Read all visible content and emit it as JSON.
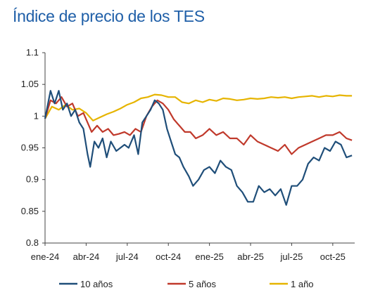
{
  "chart_data": {
    "type": "line",
    "title": "Índice de precio de los TES",
    "xlabel": "",
    "ylabel": "",
    "x_ticks": [
      "ene-24",
      "abr-24",
      "jul-24",
      "oct-24",
      "ene-25",
      "abr-25",
      "jul-25",
      "oct-25"
    ],
    "y_ticks": [
      "0.8",
      "0.85",
      "0.9",
      "0.95",
      "1",
      "1.05",
      "1.1"
    ],
    "ylim": [
      0.8,
      1.1
    ],
    "x_unit": "months since ene-24",
    "xlim": [
      0,
      22.6
    ],
    "grid": false,
    "legend_position": "bottom",
    "series": [
      {
        "name": "10 años",
        "color": "#1f4e79",
        "x": [
          0,
          0.4,
          0.7,
          1.0,
          1.3,
          1.6,
          1.9,
          2.2,
          2.5,
          2.8,
          3.1,
          3.3,
          3.6,
          3.9,
          4.2,
          4.5,
          4.8,
          5.2,
          5.5,
          5.8,
          6.1,
          6.5,
          6.8,
          7.1,
          7.4,
          7.7,
          8.0,
          8.3,
          8.6,
          8.9,
          9.2,
          9.5,
          9.8,
          10.1,
          10.5,
          10.8,
          11.2,
          11.6,
          12.0,
          12.4,
          12.8,
          13.2,
          13.6,
          14.0,
          14.4,
          14.8,
          15.2,
          15.6,
          16.0,
          16.4,
          16.8,
          17.2,
          17.6,
          18.0,
          18.4,
          18.8,
          19.2,
          19.6,
          20.0,
          20.4,
          20.8,
          21.2,
          21.6,
          22.0,
          22.4
        ],
        "values": [
          0.996,
          1.04,
          1.02,
          1.04,
          1.01,
          1.02,
          1.0,
          1.01,
          0.99,
          0.98,
          0.94,
          0.92,
          0.96,
          0.95,
          0.965,
          0.935,
          0.96,
          0.945,
          0.95,
          0.955,
          0.95,
          0.97,
          0.94,
          0.99,
          1.0,
          1.01,
          1.025,
          1.02,
          1.01,
          0.98,
          0.96,
          0.94,
          0.935,
          0.92,
          0.905,
          0.89,
          0.9,
          0.915,
          0.92,
          0.91,
          0.93,
          0.92,
          0.915,
          0.89,
          0.88,
          0.865,
          0.865,
          0.89,
          0.88,
          0.885,
          0.875,
          0.885,
          0.86,
          0.89,
          0.89,
          0.9,
          0.925,
          0.935,
          0.93,
          0.95,
          0.945,
          0.96,
          0.955,
          0.935,
          0.938
        ]
      },
      {
        "name": "5 años",
        "color": "#c0392b",
        "x": [
          0,
          0.4,
          0.8,
          1.2,
          1.6,
          2.0,
          2.4,
          2.8,
          3.1,
          3.4,
          3.8,
          4.2,
          4.6,
          5.0,
          5.4,
          5.8,
          6.2,
          6.6,
          7.0,
          7.4,
          7.8,
          8.2,
          8.6,
          9.0,
          9.4,
          9.8,
          10.2,
          10.6,
          11.0,
          11.5,
          12.0,
          12.5,
          13.0,
          13.5,
          14.0,
          14.5,
          15.0,
          15.5,
          16.0,
          16.5,
          17.0,
          17.5,
          18.0,
          18.5,
          19.0,
          19.5,
          20.0,
          20.5,
          21.0,
          21.5,
          22.0,
          22.4
        ],
        "values": [
          0.996,
          1.025,
          1.02,
          1.03,
          1.015,
          1.02,
          1.0,
          1.005,
          0.99,
          0.975,
          0.985,
          0.975,
          0.98,
          0.97,
          0.972,
          0.975,
          0.97,
          0.98,
          0.975,
          1.0,
          1.015,
          1.025,
          1.02,
          1.01,
          0.995,
          0.985,
          0.975,
          0.975,
          0.965,
          0.97,
          0.98,
          0.97,
          0.975,
          0.965,
          0.965,
          0.955,
          0.97,
          0.96,
          0.955,
          0.95,
          0.945,
          0.955,
          0.94,
          0.95,
          0.955,
          0.96,
          0.965,
          0.97,
          0.97,
          0.975,
          0.965,
          0.962
        ]
      },
      {
        "name": "1 año",
        "color": "#e6b400",
        "x": [
          0,
          0.5,
          1.0,
          1.5,
          2.0,
          2.5,
          3.0,
          3.5,
          4.0,
          4.5,
          5.0,
          5.5,
          6.0,
          6.5,
          7.0,
          7.5,
          8.0,
          8.5,
          9.0,
          9.5,
          10.0,
          10.5,
          11.0,
          11.5,
          12.0,
          12.5,
          13.0,
          13.5,
          14.0,
          14.5,
          15.0,
          15.5,
          16.0,
          16.5,
          17.0,
          17.5,
          18.0,
          18.5,
          19.0,
          19.5,
          20.0,
          20.5,
          21.0,
          21.5,
          22.0,
          22.4
        ],
        "values": [
          0.996,
          1.015,
          1.01,
          1.018,
          1.01,
          1.012,
          1.005,
          0.993,
          0.998,
          1.003,
          1.007,
          1.012,
          1.018,
          1.022,
          1.028,
          1.03,
          1.034,
          1.033,
          1.03,
          1.03,
          1.022,
          1.02,
          1.025,
          1.022,
          1.026,
          1.024,
          1.028,
          1.027,
          1.025,
          1.026,
          1.028,
          1.027,
          1.028,
          1.03,
          1.029,
          1.03,
          1.028,
          1.03,
          1.031,
          1.032,
          1.03,
          1.032,
          1.031,
          1.033,
          1.032,
          1.032
        ]
      }
    ]
  }
}
